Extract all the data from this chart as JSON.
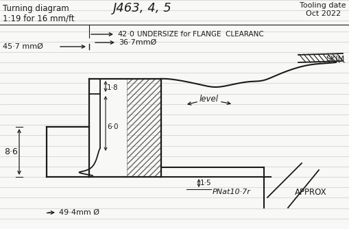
{
  "background_color": "#f8f8f6",
  "line_color": "#1a1a1a",
  "title_left": "Turning diagram",
  "subtitle_left": "1:19 for 16 mm/ft",
  "title_center": "J463, 4, 5",
  "title_right": "Tooling date\nOct 2022",
  "label_457": "45·7 mmØ",
  "label_420": "42·0",
  "label_367": "36·7mmØ",
  "label_undersize": "UNDERSIZE for FLANGE  CLEARANC",
  "label_18": "1·8",
  "label_60": "6·0",
  "label_86": "8·6",
  "label_15": "1·5",
  "label_494": "49·4mm Ø",
  "label_level": "level",
  "label_skim": "SKIM",
  "label_pnat": "PNat10·7r",
  "label_approx": "APPROX",
  "figsize": [
    5.09,
    3.34
  ],
  "dpi": 100
}
